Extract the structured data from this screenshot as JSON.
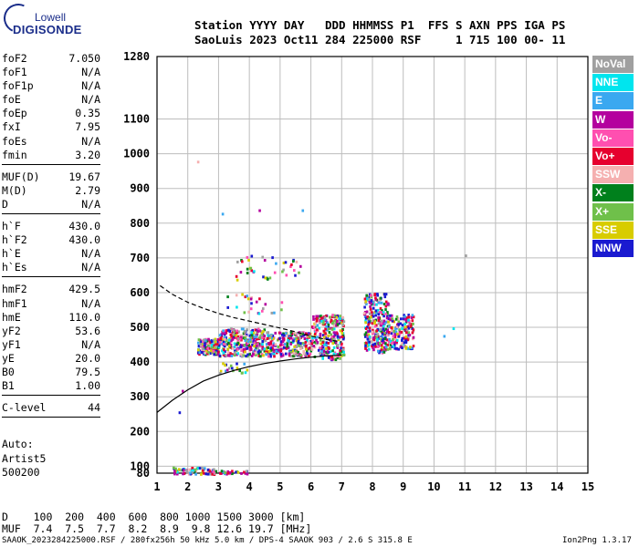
{
  "logo": {
    "line1": "Lowell",
    "line2": "DIGISONDE"
  },
  "header": {
    "line1": "Station YYYY DAY   DDD HHMMSS P1  FFS S AXN PPS IGA PS",
    "line2": "SaoLuis 2023 Oct11 284 225000 RSF     1 715 100 00- 11"
  },
  "params": [
    [
      {
        "k": "foF2",
        "v": "7.050"
      },
      {
        "k": "foF1",
        "v": "N/A"
      },
      {
        "k": "foF1p",
        "v": "N/A"
      },
      {
        "k": "foE",
        "v": "N/A"
      },
      {
        "k": "foEp",
        "v": "0.35"
      },
      {
        "k": "fxI",
        "v": "7.95"
      },
      {
        "k": "foEs",
        "v": "N/A"
      },
      {
        "k": "fmin",
        "v": "3.20"
      }
    ],
    [
      {
        "k": "MUF(D)",
        "v": "19.67"
      },
      {
        "k": "M(D)",
        "v": "2.79"
      },
      {
        "k": "D",
        "v": "N/A"
      }
    ],
    [
      {
        "k": "h`F",
        "v": "430.0"
      },
      {
        "k": "h`F2",
        "v": "430.0"
      },
      {
        "k": "h`E",
        "v": "N/A"
      },
      {
        "k": "h`Es",
        "v": "N/A"
      }
    ],
    [
      {
        "k": "hmF2",
        "v": "429.5"
      },
      {
        "k": "hmF1",
        "v": "N/A"
      },
      {
        "k": "hmE",
        "v": "110.0"
      },
      {
        "k": "yF2",
        "v": "53.6"
      },
      {
        "k": "yF1",
        "v": "N/A"
      },
      {
        "k": "yE",
        "v": "20.0"
      },
      {
        "k": "B0",
        "v": "79.5"
      },
      {
        "k": "B1",
        "v": "1.00"
      }
    ],
    [
      {
        "k": "C-level",
        "v": "44"
      }
    ]
  ],
  "auto": {
    "line1": "Auto:",
    "line2": "Artist5",
    "line3": "500200"
  },
  "legend": [
    {
      "label": "NoVal",
      "color": "#a0a0a0"
    },
    {
      "label": "NNE",
      "color": "#00e5ee"
    },
    {
      "label": "E",
      "color": "#3aa8f0"
    },
    {
      "label": "W",
      "color": "#b4009e"
    },
    {
      "label": "Vo-",
      "color": "#ff4fb0"
    },
    {
      "label": "Vo+",
      "color": "#e6002e"
    },
    {
      "label": "SSW",
      "color": "#f5b0b0"
    },
    {
      "label": "X-",
      "color": "#00801c"
    },
    {
      "label": "X+",
      "color": "#6fc04a"
    },
    {
      "label": "SSE",
      "color": "#d8cc00"
    },
    {
      "label": "NNW",
      "color": "#1a1ad0"
    }
  ],
  "mufTable": {
    "dLine": "D    100  200  400  600  800 1000 1500 3000 [km]",
    "mufLine": "MUF  7.4  7.5  7.7  8.2  8.9  9.8 12.6 19.7 [MHz]"
  },
  "footer": {
    "left": "SAAOK_2023284225000.RSF / 280fx256h 50 kHz 5.0 km / DPS-4 SAAOK 903 / 2.6 S 315.8 E",
    "right": "Ion2Png 1.3.17"
  },
  "chart_data": {
    "type": "scatter",
    "xlim": [
      1,
      15
    ],
    "ylim": [
      80,
      1280
    ],
    "x_ticks": [
      1,
      2,
      3,
      4,
      5,
      6,
      7,
      8,
      9,
      10,
      11,
      12,
      13,
      14,
      15
    ],
    "y_ticks": [
      80,
      100,
      200,
      300,
      400,
      500,
      600,
      700,
      800,
      900,
      1000,
      1100,
      1280
    ],
    "grid": true,
    "clusters": [
      {
        "x": [
          2.3,
          3.0
        ],
        "y": [
          425,
          470
        ],
        "count": 200
      },
      {
        "x": [
          3.0,
          4.5
        ],
        "y": [
          420,
          500
        ],
        "count": 300
      },
      {
        "x": [
          4.5,
          6.0
        ],
        "y": [
          420,
          490
        ],
        "count": 240
      },
      {
        "x": [
          6.0,
          7.05
        ],
        "y": [
          410,
          540
        ],
        "count": 260
      },
      {
        "x": [
          7.7,
          8.5
        ],
        "y": [
          430,
          600
        ],
        "count": 280
      },
      {
        "x": [
          8.5,
          9.3
        ],
        "y": [
          440,
          540
        ],
        "count": 160
      },
      {
        "x": [
          3.5,
          5.7
        ],
        "y": [
          640,
          710
        ],
        "count": 40
      },
      {
        "x": [
          3.2,
          5.1
        ],
        "y": [
          540,
          600
        ],
        "count": 25
      },
      {
        "x": [
          1.5,
          2.9
        ],
        "y": [
          80,
          100
        ],
        "count": 70
      },
      {
        "x": [
          3.0,
          3.9
        ],
        "y": [
          80,
          90
        ],
        "count": 25
      },
      {
        "x": [
          3.0,
          4.0
        ],
        "y": [
          370,
          400
        ],
        "count": 20
      }
    ],
    "traces": [
      {
        "name": "virtual-height-fit",
        "style": "solid",
        "x": [
          1.0,
          1.5,
          2.0,
          2.5,
          3.0,
          3.5,
          4.0,
          4.5,
          5.0,
          5.5,
          6.0,
          6.5,
          7.0
        ],
        "y": [
          255,
          290,
          320,
          345,
          362,
          376,
          387,
          396,
          403,
          409,
          414,
          418,
          420
        ]
      },
      {
        "name": "upper-trace",
        "style": "dashed",
        "x": [
          1.1,
          1.5,
          2.0,
          2.5,
          3.0,
          3.5,
          4.0,
          4.5,
          5.0,
          5.5,
          6.0,
          6.5,
          7.0
        ],
        "y": [
          620,
          595,
          572,
          555,
          540,
          528,
          518,
          508,
          498,
          487,
          475,
          465,
          458
        ]
      }
    ]
  }
}
